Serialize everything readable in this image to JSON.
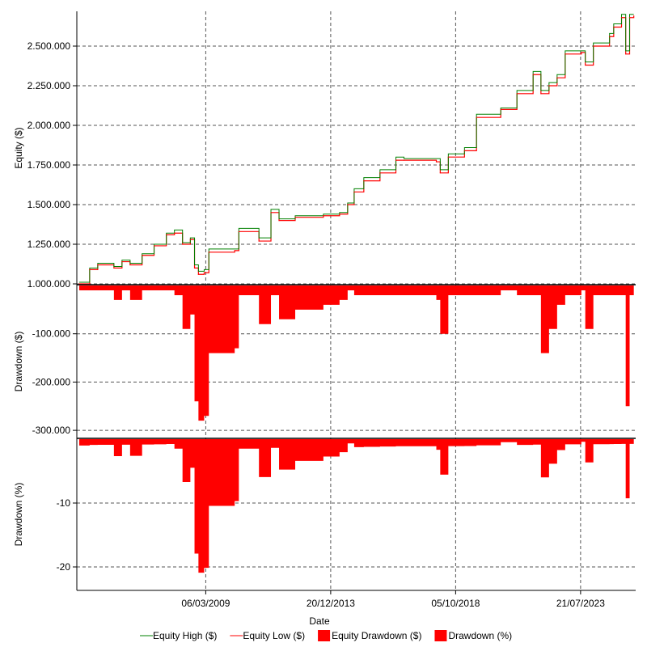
{
  "chart_data": {
    "type": "line",
    "xlabel": "Date",
    "x_ticks": [
      {
        "label": "06/03/2009",
        "year": 2009.18
      },
      {
        "label": "20/12/2013",
        "year": 2013.97
      },
      {
        "label": "05/10/2018",
        "year": 2018.76
      },
      {
        "label": "21/07/2023",
        "year": 2023.55
      }
    ],
    "xlim": [
      2004.3,
      2025.6
    ],
    "panels": [
      {
        "ylabel": "Equity ($)",
        "ylim": [
          1000000,
          2700000
        ],
        "ticks": [
          {
            "v": 1000000,
            "label": "1.000.000"
          },
          {
            "v": 1250000,
            "label": "1.250.000"
          },
          {
            "v": 1500000,
            "label": "1.500.000"
          },
          {
            "v": 1750000,
            "label": "1.750.000"
          },
          {
            "v": 2000000,
            "label": "2.000.000"
          },
          {
            "v": 2250000,
            "label": "2.250.000"
          },
          {
            "v": 2500000,
            "label": "2.500.000"
          }
        ]
      },
      {
        "ylabel": "Drawdown ($)",
        "ylim": [
          -320000,
          0
        ],
        "ticks": [
          {
            "v": -100000,
            "label": "-100.000"
          },
          {
            "v": -200000,
            "label": "-200.000"
          },
          {
            "v": -300000,
            "label": "-300.000"
          }
        ]
      },
      {
        "ylabel": "Drawdown (%)",
        "ylim": [
          -23.5,
          0
        ],
        "ticks": [
          {
            "v": -10,
            "label": "-10"
          },
          {
            "v": -20,
            "label": "-20"
          }
        ]
      }
    ],
    "x": [
      2004.33,
      2004.73,
      2005.04,
      2005.66,
      2005.97,
      2006.28,
      2006.74,
      2007.2,
      2007.67,
      2007.98,
      2008.29,
      2008.59,
      2008.75,
      2008.9,
      2009.12,
      2009.3,
      2010.29,
      2010.45,
      2011.22,
      2011.68,
      2011.99,
      2012.61,
      2013.69,
      2014.31,
      2014.62,
      2014.87,
      2015.24,
      2015.86,
      2016.47,
      2016.78,
      2018.02,
      2018.17,
      2018.48,
      2019.1,
      2019.56,
      2020.49,
      2021.11,
      2021.73,
      2022.03,
      2022.34,
      2022.65,
      2022.96,
      2023.58,
      2023.73,
      2024.04,
      2024.66,
      2024.82,
      2025.12,
      2025.28,
      2025.43,
      2025.59
    ],
    "series": [
      {
        "name": "Equity High ($)",
        "color": "#008000",
        "values": [
          1010000,
          1100000,
          1130000,
          1110000,
          1150000,
          1130000,
          1190000,
          1250000,
          1320000,
          1340000,
          1260000,
          1290000,
          1120000,
          1080000,
          1090000,
          1220000,
          1220000,
          1350000,
          1290000,
          1470000,
          1410000,
          1430000,
          1440000,
          1450000,
          1510000,
          1600000,
          1670000,
          1720000,
          1800000,
          1790000,
          1790000,
          1720000,
          1820000,
          1860000,
          2070000,
          2110000,
          2220000,
          2340000,
          2220000,
          2270000,
          2320000,
          2470000,
          2470000,
          2400000,
          2520000,
          2580000,
          2640000,
          2700000,
          2470000,
          2700000,
          2700000
        ]
      },
      {
        "name": "Equity Low ($)",
        "color": "#ff0000",
        "values": [
          1000000,
          1090000,
          1120000,
          1100000,
          1140000,
          1120000,
          1180000,
          1240000,
          1310000,
          1320000,
          1250000,
          1280000,
          1100000,
          1060000,
          1070000,
          1200000,
          1210000,
          1330000,
          1270000,
          1450000,
          1400000,
          1420000,
          1430000,
          1440000,
          1500000,
          1580000,
          1650000,
          1700000,
          1780000,
          1780000,
          1770000,
          1700000,
          1800000,
          1840000,
          2050000,
          2100000,
          2200000,
          2320000,
          2200000,
          2250000,
          2300000,
          2450000,
          2460000,
          2380000,
          2500000,
          2560000,
          2620000,
          2680000,
          2450000,
          2680000,
          2690000
        ]
      },
      {
        "name": "Equity Drawdown ($)",
        "color": "#ff0000",
        "derived": "equity low minus running max of equity high"
      },
      {
        "name": "Drawdown (%)",
        "color": "#ff0000",
        "derived": "equity drawdown divided by running max"
      }
    ]
  },
  "legend": [
    {
      "label": "Equity High ($)",
      "type": "line",
      "color": "#008000"
    },
    {
      "label": "Equity Low ($)",
      "type": "line",
      "color": "#ff0000"
    },
    {
      "label": "Equity Drawdown ($)",
      "type": "box",
      "color": "#ff0000"
    },
    {
      "label": "Drawdown (%)",
      "type": "box",
      "color": "#ff0000"
    }
  ]
}
